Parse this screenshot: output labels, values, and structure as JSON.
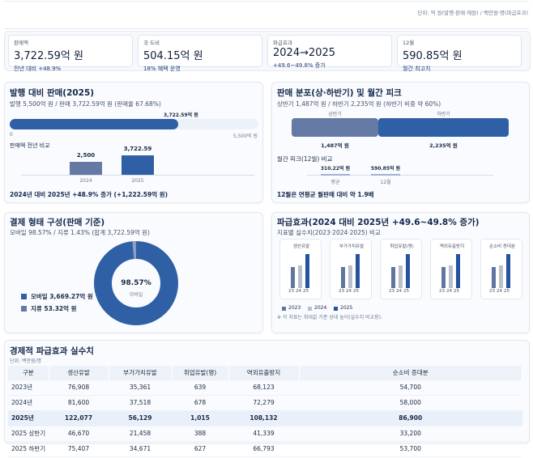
{
  "unit_note": "단위: 억 원(발행·판매·재원) / 백만원·명(파급효과)",
  "kpis": [
    {
      "label": "판매액",
      "value": "3,722.59억 원",
      "sub": "전년 대비 +48.9%"
    },
    {
      "label": "국·도비",
      "value": "504.15억 원",
      "sub": "18% 혜택 운영"
    },
    {
      "label": "파급효과",
      "value": "2024→2025",
      "sub": "+49.6~49.8% 증가"
    },
    {
      "label": "12월",
      "value": "590.85억 원",
      "sub": "월간 최고치"
    }
  ],
  "issue_panel": {
    "title": "발행 대비 판매(2025)",
    "subtitle": "발행 5,500억 원 / 판매 3,722.59억 원 (판매율 67.68%)",
    "bar_label": "3,722.59억 원",
    "progress": 67.68,
    "axis_min": "0",
    "axis_max": "5,500억 원",
    "compare_title": "판매액 전년 비교",
    "bars": [
      {
        "year": "2024",
        "label": "2,500",
        "value": 2500
      },
      {
        "year": "2025",
        "label": "3,722.59",
        "value": 3722.59
      }
    ],
    "footer": "2024년 대비 2025년 +48.9% 증가 (+1,222.59억 원)"
  },
  "dist_panel": {
    "title": "판매 분포(상·하반기) 및 월간 피크",
    "subtitle": "상반기 1,487억 원 / 하반기 2,235억 원 (하반기 비중 약 60%)",
    "halves": [
      {
        "name": "상반기",
        "value_label": "1,487억 원",
        "value": 1487
      },
      {
        "name": "하반기",
        "value_label": "2,235억 원",
        "value": 2235
      }
    ],
    "peak_title": "월간 피크(12월) 비교",
    "peak": [
      {
        "name": "평균",
        "value_label": "310.22억 원",
        "value": 310.22
      },
      {
        "name": "12월",
        "value_label": "590.85억 원",
        "value": 590.85
      }
    ],
    "footer": "12월은 연평균 월판매 대비 약 1.9배"
  },
  "payment_panel": {
    "title": "결제 형태 구성(판매 기준)",
    "subtitle": "모바일 98.57% / 지류 1.43% (합계 3,722.59억 원)",
    "center_value": "98.57%",
    "center_label": "모바일",
    "share_mobile": 98.57,
    "legend": [
      {
        "label": "모바일 3,669.27억 원",
        "color": "#2f5fa5"
      },
      {
        "label": "지류 53.32억 원",
        "color": "#6479a3"
      }
    ]
  },
  "effect_panel": {
    "title": "파급효과(2024 대비 2025년 +49.6~49.8% 증가)",
    "subtitle": "지표별 실수치(2023·2024·2025) 비교",
    "indicators": [
      "생산유발",
      "부가가치유발",
      "취업유발(명)",
      "역외유출방지",
      "순소비 증대분"
    ],
    "year_ticks": [
      "23",
      "24",
      "25"
    ],
    "legend": [
      {
        "label": "2023",
        "color": "#5f76a0"
      },
      {
        "label": "2024",
        "color": "#b8c0cd"
      },
      {
        "label": "2025",
        "color": "#2453a0"
      }
    ],
    "note": "※ 각 지표는 최대값 기준 상대 높이(실수치 비교용)."
  },
  "table": {
    "title": "경제적 파급효과 실수치",
    "unit": "단위: 백만원/명",
    "headers": [
      "구분",
      "생산유발",
      "부가가치유발",
      "취업유발(명)",
      "역외유출방지",
      "순소비 증대분"
    ],
    "rows": [
      [
        "2023년",
        "76,908",
        "35,361",
        "639",
        "68,123",
        "54,700"
      ],
      [
        "2024년",
        "81,600",
        "37,518",
        "678",
        "72,279",
        "58,000"
      ],
      [
        "2025년",
        "122,077",
        "56,129",
        "1,015",
        "108,132",
        "86,900"
      ],
      [
        "2025 상반기",
        "46,670",
        "21,458",
        "388",
        "41,339",
        "33,200"
      ],
      [
        "2025 하반기",
        "75,407",
        "34,671",
        "627",
        "66,793",
        "53,700"
      ]
    ]
  }
}
